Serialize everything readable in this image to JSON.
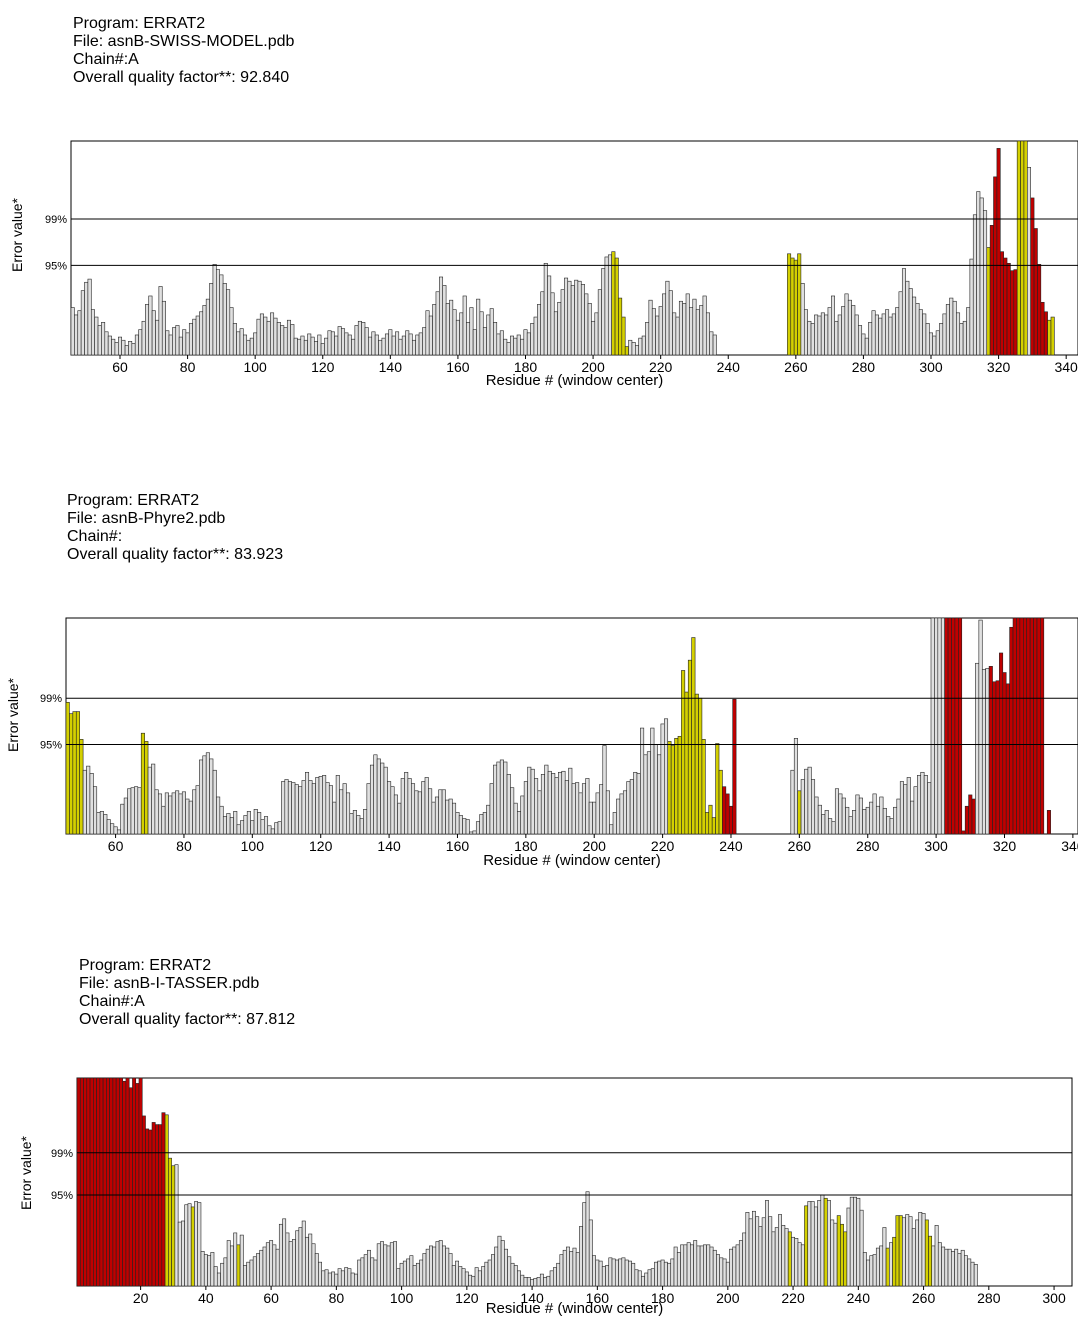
{
  "chart_data": [
    {
      "type": "bar",
      "program": "Program: ERRAT2",
      "file": "File: asnB-SWISS-MODEL.pdb",
      "chain": "Chain#:A",
      "quality": "Overall quality factor**: 92.840",
      "ylabel": "Error value*",
      "xlabel": "Residue # (window center)",
      "threshold_labels": [
        "99%",
        "95%"
      ],
      "x_ticks": [
        60,
        80,
        100,
        120,
        140,
        160,
        180,
        200,
        220,
        240,
        260,
        280,
        300,
        320,
        340
      ],
      "xlim": [
        46,
        343
      ],
      "ylim": [
        0,
        20.3
      ],
      "threshold_values": [
        12.9,
        8.5
      ],
      "colors": {
        "ok": "#e0e0e0",
        "warning": "#d4d000",
        "error": "#c00000"
      },
      "segments": [
        {
          "start": 46,
          "values": [
            4.5,
            3.8,
            4.2,
            6.1,
            6.9,
            7.2,
            4.3,
            3.6,
            2.8,
            3.1,
            2.2,
            1.8,
            1.5,
            1.2,
            1.7,
            1.4,
            0.9,
            1.3,
            1.1,
            1.9,
            2.4,
            3.2,
            4.8,
            5.6,
            4.2,
            3.3,
            6.5,
            5.1,
            2.3,
            1.9,
            2.6,
            2.8,
            1.7,
            2.4,
            2.1,
            3.0,
            3.4,
            3.7,
            4.1,
            4.7,
            5.3,
            6.8,
            8.6,
            8.1,
            7.6,
            6.8,
            6.2,
            4.5,
            3.0,
            2.2,
            2.5,
            1.9,
            1.4,
            1.6,
            2.1,
            3.4,
            3.9,
            3.6,
            3.2,
            4.0,
            3.5,
            3.1,
            2.8,
            2.6,
            3.3,
            2.9,
            1.6,
            1.5,
            1.8,
            1.4,
            2.0,
            1.7,
            1.3,
            1.9,
            1.1,
            1.6,
            2.3,
            2.2,
            1.8,
            2.7,
            2.5,
            2.1,
            1.9,
            1.5,
            2.8,
            3.2,
            3.1,
            2.6,
            1.7,
            2.2,
            1.9,
            1.4,
            1.6,
            2.0,
            2.4,
            1.8,
            2.2,
            1.5,
            1.8,
            2.3,
            2.0,
            1.4,
            1.9,
            2.1,
            2.6,
            4.2,
            3.7,
            4.8,
            6.0,
            7.4,
            6.6,
            4.9,
            5.2,
            4.3,
            3.3,
            4.0,
            5.6,
            3.1,
            4.5,
            2.4,
            5.3,
            4.1,
            2.6,
            3.8,
            4.4,
            3.1,
            2.0,
            2.3,
            1.5,
            1.2,
            1.8,
            1.6,
            1.9,
            1.5,
            2.4,
            2.1,
            3.0,
            3.6,
            4.8,
            6.0,
            8.7,
            7.5,
            5.9,
            4.1,
            5.0,
            6.2,
            7.3,
            7.0,
            6.6,
            7.1,
            7.0,
            6.7,
            5.8,
            4.9,
            3.2,
            4.0,
            6.2,
            8.2,
            9.3,
            9.5,
            9.8,
            9.2,
            5.4,
            3.6,
            0.8,
            1.4,
            1.2,
            0.9,
            1.6,
            1.8,
            3.1,
            5.2,
            4.4,
            3.7,
            4.6,
            5.8,
            7.0,
            6.1,
            4.0,
            3.6,
            5.1,
            4.9,
            5.8,
            4.5,
            5.3,
            4.3,
            4.7,
            5.6,
            4.0,
            2.2,
            1.9
          ]
        },
        {
          "start": 258,
          "values": [
            9.6,
            9.2,
            9.0,
            9.6
          ]
        },
        {
          "start": 262,
          "values": [
            6.8,
            4.3,
            3.2,
            3.0,
            3.8,
            3.7,
            4.0,
            3.8,
            4.5,
            5.6,
            3.2,
            3.8,
            4.6,
            5.8,
            5.2,
            4.7,
            3.8,
            2.8,
            2.0,
            1.6,
            3.1,
            4.2,
            3.8,
            3.5,
            3.9,
            4.3,
            3.6,
            3.9,
            4.5,
            6.0,
            8.2,
            7.0,
            6.3,
            5.5,
            4.9,
            4.3,
            3.9,
            3.0,
            2.1,
            1.8,
            2.3,
            3.0,
            3.9,
            4.8,
            5.4,
            5.1,
            4.0,
            3.0,
            3.2,
            4.5,
            9.1,
            13.3,
            15.5,
            14.9,
            13.7,
            10.2,
            12.3,
            16.9,
            19.6,
            9.8,
            9.2,
            8.7,
            8.0,
            8.1,
            20.3,
            20.3,
            20.3,
            17.8,
            14.9,
            12.0,
            8.6,
            5.0,
            4.1,
            3.3,
            3.6
          ]
        }
      ],
      "warning_residues": [
        206,
        207,
        208,
        209,
        210,
        258,
        259,
        260,
        261,
        317,
        326,
        327,
        328,
        335,
        336
      ],
      "error_residues": [
        318,
        319,
        320,
        321,
        322,
        323,
        324,
        325,
        330,
        331,
        332,
        333,
        334
      ]
    },
    {
      "type": "bar",
      "program": "Program: ERRAT2",
      "file": "File: asnB-Phyre2.pdb",
      "chain": "Chain#:",
      "quality": "Overall quality factor**: 83.923",
      "ylabel": "Error value*",
      "xlabel": "Residue # (window center)",
      "threshold_labels": [
        "99%",
        "95%"
      ],
      "x_ticks": [
        60,
        80,
        100,
        120,
        140,
        160,
        180,
        200,
        220,
        240,
        260,
        280,
        300,
        320,
        340
      ],
      "xlim": [
        46,
        341
      ],
      "ylim": [
        0,
        21
      ],
      "threshold_values": [
        13.2,
        8.7
      ],
      "colors": {
        "ok": "#e0e0e0",
        "warning": "#d4d000",
        "error": "#c00000"
      },
      "segments": [
        {
          "start": 46,
          "values": [
            12.8,
            11.7,
            11.9,
            11.9,
            9.2,
            6.2,
            6.6,
            5.9,
            4.6,
            2.1,
            2.2,
            1.9,
            1.4,
            1.0,
            0.7,
            0.4,
            2.9,
            3.5,
            4.4,
            4.5,
            4.6,
            4.5,
            9.8,
            9.0,
            6.5,
            6.8,
            4.3,
            3.9,
            2.7,
            4.0,
            3.7,
            4.0,
            4.2,
            3.9,
            4.1,
            3.4,
            3.2,
            4.3,
            4.7,
            7.2,
            7.6,
            7.9,
            7.3,
            6.2,
            3.6,
            2.7,
            1.7,
            2.0,
            1.6,
            2.2,
            0.9,
            1.3,
            1.8,
            2.2,
            1.3,
            2.4,
            2.1,
            1.4,
            1.7,
            0.8,
            0.5,
            1.1,
            1.2,
            5.1,
            5.3,
            5.1,
            5.0,
            4.8,
            4.6,
            5.2,
            6.0,
            5.2,
            4.9,
            5.5,
            5.6,
            5.7,
            5.0,
            4.7,
            3.1,
            5.7,
            4.3,
            4.9,
            4.0,
            2.0,
            2.3,
            1.8,
            1.5,
            2.4,
            4.9,
            6.7,
            7.7,
            7.3,
            6.9,
            6.5,
            5.1,
            4.6,
            3.8,
            3.0,
            5.4,
            6.0,
            5.4,
            4.9,
            4.2,
            4.1,
            5.1,
            5.5,
            4.4,
            3.1,
            3.6,
            4.3,
            4.3,
            3.3,
            3.4,
            3.0,
            2.1,
            1.8,
            1.5,
            1.4,
            0.2,
            0.3,
            1.2,
            1.9,
            2.1,
            2.8,
            4.9,
            6.7,
            7.0,
            7.2,
            7.0,
            5.8,
            4.5,
            3.0,
            2.2,
            3.7,
            5.1,
            6.5,
            6.3,
            5.4,
            4.2,
            5.8,
            6.7,
            6.1,
            5.9,
            5.5,
            6.0,
            6.1,
            5.2,
            6.4,
            4.9,
            5.0,
            4.0,
            4.9,
            5.4,
            3.1,
            3.1,
            4.0,
            4.8,
            8.6,
            4.2,
            0.9,
            2.1,
            3.4,
            3.9,
            4.2,
            5.1,
            5.3,
            6.0,
            5.9,
            10.3,
            7.7,
            8.0,
            10.3,
            8.7,
            7.7,
            10.7,
            11.2,
            9.0,
            8.6,
            9.3,
            9.5,
            15.9,
            13.8,
            16.9,
            19.1,
            13.6,
            13.2,
            9.2,
            2.1,
            2.8,
            1.6,
            8.8,
            6.2,
            4.6,
            3.9,
            2.7,
            13.1
          ]
        },
        {
          "start": 258,
          "values": [
            6.2,
            9.3,
            4.2,
            5.3,
            6.3,
            6.5,
            5.3,
            3.6,
            2.8,
            1.9,
            2.3,
            1.5,
            1.2,
            4.4,
            3.9,
            3.5,
            2.6,
            1.7,
            2.3,
            3.8,
            3.5,
            2.4,
            2.6,
            3.1,
            3.9,
            2.7,
            3.6,
            2.5,
            1.7,
            1.5,
            2.6,
            3.4,
            5.1,
            4.8,
            5.5,
            3.2,
            4.6,
            5.7,
            6.0,
            5.7,
            5.0,
            21.0,
            21.0,
            21.0,
            21.0,
            21.0,
            21.0,
            21.0,
            21.0,
            21.0,
            0.3,
            2.7,
            3.8,
            3.4,
            16.6,
            20.8,
            16.0,
            16.1,
            16.3,
            14.8,
            14.9,
            17.6,
            15.7,
            14.6,
            20.1,
            21.0,
            21.0,
            21.0,
            21.0,
            21.0,
            21.0,
            21.0,
            21.0,
            21.0,
            0.0,
            2.3
          ]
        }
      ],
      "warning_residues": [
        46,
        47,
        48,
        49,
        50,
        68,
        69,
        222,
        223,
        224,
        225,
        226,
        227,
        228,
        229,
        230,
        231,
        232,
        233,
        234,
        235,
        236,
        237,
        242,
        245,
        260
      ],
      "error_residues": [
        238,
        239,
        240,
        241,
        243,
        244,
        250,
        303,
        304,
        305,
        306,
        307,
        308,
        309,
        310,
        311,
        316,
        317,
        318,
        319,
        320,
        321,
        322,
        323,
        324,
        325,
        326,
        327,
        328,
        329,
        330,
        331,
        332,
        333,
        334,
        335,
        336,
        337,
        338
      ]
    },
    {
      "type": "bar",
      "program": "Program: ERRAT2",
      "file": "File: asnB-I-TASSER.pdb",
      "chain": "Chain#:A",
      "quality": "Overall quality factor**: 87.812",
      "ylabel": "Error value*",
      "xlabel": "Residue # (window center)",
      "threshold_labels": [
        "99%",
        "95%"
      ],
      "x_ticks": [
        20,
        40,
        60,
        80,
        100,
        120,
        140,
        160,
        180,
        200,
        220,
        240,
        260,
        280,
        300
      ],
      "xlim": [
        1,
        305
      ],
      "ylim": [
        0,
        19.2
      ],
      "threshold_values": [
        12.3,
        8.4
      ],
      "colors": {
        "ok": "#e0e0e0",
        "warning": "#d4d000",
        "error": "#c00000"
      },
      "segments": [
        {
          "start": 1,
          "values": [
            19.2,
            19.2,
            19.2,
            19.2,
            19.2,
            19.2,
            19.2,
            19.2,
            19.2,
            19.2,
            19.2,
            19.2,
            19.2,
            19.2,
            18.9,
            19.2,
            18.3,
            19.2,
            18.7,
            19.2,
            15.7,
            14.5,
            14.4,
            15.1,
            14.9,
            14.9,
            16.0,
            15.8,
            11.8,
            11.1,
            11.2,
            5.9,
            6.0,
            7.5,
            7.6,
            7.3,
            7.8,
            7.7,
            3.2,
            2.9,
            2.8,
            3.1,
            1.8,
            1.2,
            2.1,
            2.6,
            4.2,
            3.7,
            4.9,
            3.8,
            4.7,
            1.9,
            2.2,
            2.4,
            2.7,
            3.0,
            3.3,
            3.6,
            4.0,
            4.2,
            3.8,
            3.4,
            5.7,
            6.2,
            4.9,
            4.1,
            4.3,
            5.1,
            5.4,
            6.0,
            4.5,
            4.8,
            3.9,
            3.0,
            2.2,
            1.4,
            1.5,
            1.2,
            1.3,
            1.1,
            1.6,
            1.4,
            1.7,
            1.6,
            1.2,
            1.1,
            2.4,
            2.6,
            2.9,
            3.3,
            2.6,
            2.4,
            3.9,
            4.1,
            3.8,
            3.7,
            4.0,
            4.1,
            1.6,
            2.1,
            2.3,
            2.5,
            2.8,
            1.9,
            2.1,
            2.4,
            3.0,
            3.4,
            3.7,
            3.6,
            4.1,
            4.2,
            3.7,
            3.5,
            3.0,
            1.9,
            2.3,
            1.8,
            1.6,
            1.3,
            1.0,
            0.9,
            1.7,
            1.4,
            1.8,
            2.2,
            2.4,
            2.9,
            3.6,
            4.6,
            4.2,
            3.4,
            2.7,
            2.1,
            1.9,
            1.4,
            1.0,
            0.8,
            0.8,
            0.6,
            0.7,
            0.8,
            1.1,
            0.8,
            0.9,
            1.4,
            1.7,
            2.1,
            2.9,
            3.3,
            3.6,
            3.2,
            3.5,
            3.1,
            5.5,
            7.7,
            8.7,
            6.1,
            2.8,
            2.4,
            2.3,
            1.8,
            1.9,
            2.6,
            2.5,
            2.4,
            2.5,
            2.6,
            2.4,
            2.3,
            2.1,
            1.5,
            1.4,
            0.9,
            1.2,
            1.5,
            1.6,
            2.2,
            2.3,
            2.4,
            2.2,
            2.1,
            2.5,
            3.6,
            3.1,
            3.8,
            3.8,
            4.0,
            3.8,
            4.2,
            3.7,
            3.7,
            3.8,
            3.8,
            3.6,
            3.3,
            2.9,
            2.6,
            2.5,
            2.2,
            3.4,
            3.6,
            3.8,
            4.2,
            4.9,
            6.8,
            6.2,
            6.9,
            6.4,
            5.5,
            6.3,
            7.9,
            6.4,
            5.0,
            5.4,
            6.6,
            5.6,
            5.3,
            5.0,
            4.5,
            4.4,
            4.0,
            3.8,
            7.4,
            7.8,
            7.8,
            7.3,
            7.9,
            8.4,
            8.1,
            7.9,
            6.1,
            5.8,
            6.5,
            5.7,
            5.0,
            7.2,
            8.2,
            8.2,
            8.1,
            7.0,
            3.1,
            2.4,
            2.8,
            2.9,
            3.5,
            3.7,
            5.4,
            3.5,
            4.0,
            4.5,
            6.5,
            6.5,
            6.3,
            6.6,
            6.4,
            5.3,
            6.1,
            6.8,
            6.7,
            6.1,
            4.6,
            3.7,
            5.6,
            4.0,
            3.6,
            3.4,
            3.4,
            3.2,
            3.4,
            3.0,
            3.3,
            2.8,
            2.5,
            2.2,
            2.0
          ]
        }
      ],
      "warning_residues": [
        28,
        29,
        30,
        36,
        50,
        219,
        224,
        230,
        234,
        235,
        236,
        249,
        251,
        252,
        253,
        261,
        262
      ],
      "error_residues": [
        1,
        2,
        3,
        4,
        5,
        6,
        7,
        8,
        9,
        10,
        11,
        12,
        13,
        14,
        15,
        16,
        17,
        18,
        19,
        20,
        21,
        22,
        23,
        24,
        25,
        26,
        27
      ]
    }
  ]
}
